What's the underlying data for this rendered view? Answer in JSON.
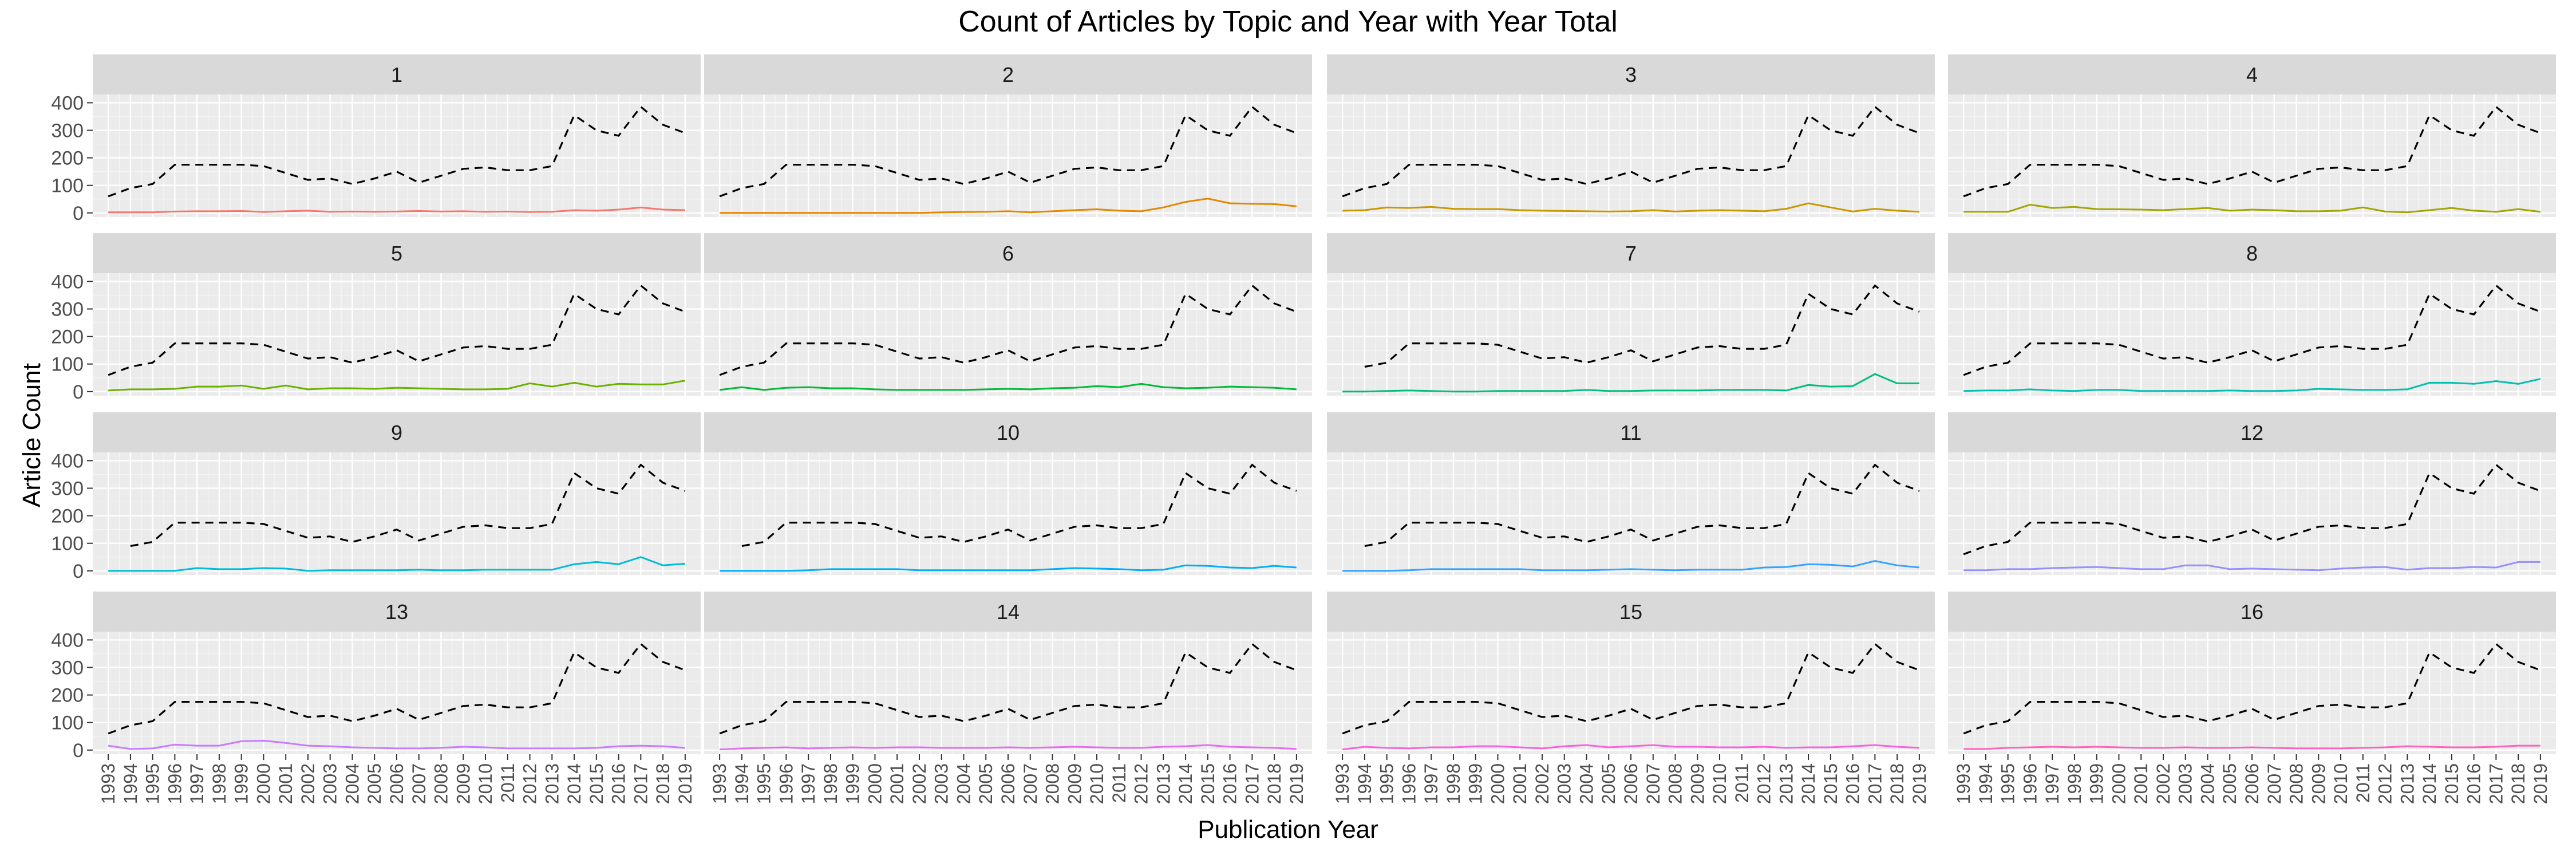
{
  "chart_data": {
    "type": "line",
    "title": "Count of Articles by Topic and Year with Year Total",
    "xlabel": "Publication Year",
    "ylabel": "Article Count",
    "x": [
      1993,
      1994,
      1995,
      1996,
      1997,
      1998,
      1999,
      2000,
      2001,
      2002,
      2003,
      2004,
      2005,
      2006,
      2007,
      2008,
      2009,
      2010,
      2011,
      2012,
      2013,
      2014,
      2015,
      2016,
      2017,
      2018,
      2019
    ],
    "x_tick_labels": [
      "1993",
      "1994",
      "1995",
      "1996",
      "1997",
      "1998",
      "1999",
      "2000",
      "2001",
      "2002",
      "2003",
      "2004",
      "2005",
      "2006",
      "2007",
      "2008",
      "2009",
      "2010",
      "2011",
      "2012",
      "2013",
      "2014",
      "2015",
      "2016",
      "2017",
      "2018",
      "2019"
    ],
    "y_ticks": [
      0,
      100,
      200,
      300,
      400
    ],
    "y_tick_labels": [
      "0",
      "100",
      "200",
      "300",
      "400"
    ],
    "ylim": [
      -15,
      430
    ],
    "xlim": [
      1992.3,
      2019.7
    ],
    "grid": true,
    "facet_layout": {
      "rows": 4,
      "cols": 4
    },
    "year_total": {
      "style": "dashed",
      "color": "#000000",
      "values": [
        60,
        90,
        105,
        175,
        175,
        175,
        175,
        170,
        145,
        120,
        125,
        105,
        125,
        150,
        110,
        135,
        160,
        165,
        155,
        155,
        170,
        355,
        300,
        280,
        385,
        320,
        290
      ]
    },
    "panels": [
      {
        "label": "1",
        "color": "#F8766D",
        "total_start": 0,
        "values": [
          2,
          2,
          2,
          5,
          6,
          6,
          7,
          3,
          6,
          8,
          4,
          5,
          4,
          5,
          7,
          5,
          6,
          4,
          5,
          3,
          4,
          10,
          8,
          12,
          20,
          12,
          10
        ]
      },
      {
        "label": "2",
        "color": "#E58700",
        "total_start": 0,
        "values": [
          0,
          0,
          0,
          0,
          0,
          0,
          0,
          0,
          0,
          0,
          2,
          3,
          4,
          6,
          2,
          6,
          10,
          13,
          8,
          6,
          20,
          40,
          52,
          35,
          33,
          32,
          24
        ]
      },
      {
        "label": "3",
        "color": "#C99800",
        "total_start": 0,
        "values": [
          8,
          10,
          20,
          18,
          22,
          15,
          14,
          14,
          10,
          8,
          7,
          6,
          5,
          6,
          10,
          5,
          8,
          10,
          8,
          6,
          15,
          35,
          20,
          5,
          15,
          8,
          4
        ]
      },
      {
        "label": "4",
        "color": "#A3A500",
        "total_start": 0,
        "values": [
          4,
          4,
          4,
          30,
          18,
          22,
          14,
          13,
          12,
          10,
          14,
          18,
          8,
          12,
          10,
          6,
          6,
          8,
          20,
          5,
          2,
          10,
          18,
          8,
          4,
          14,
          4
        ]
      },
      {
        "label": "5",
        "color": "#6BB100",
        "total_start": 0,
        "values": [
          4,
          8,
          8,
          10,
          18,
          18,
          22,
          10,
          22,
          8,
          12,
          12,
          10,
          14,
          12,
          10,
          8,
          8,
          10,
          30,
          18,
          32,
          18,
          28,
          26,
          26,
          40
        ]
      },
      {
        "label": "6",
        "color": "#00BA38",
        "total_start": 0,
        "values": [
          6,
          16,
          6,
          14,
          16,
          12,
          12,
          8,
          6,
          6,
          6,
          6,
          8,
          10,
          8,
          12,
          14,
          20,
          16,
          28,
          16,
          12,
          14,
          18,
          16,
          14,
          8
        ]
      },
      {
        "label": "7",
        "color": "#00BF7D",
        "total_start": 1,
        "values": [
          0,
          0,
          2,
          4,
          2,
          0,
          0,
          2,
          2,
          2,
          2,
          6,
          2,
          2,
          4,
          4,
          4,
          6,
          6,
          6,
          4,
          24,
          18,
          20,
          64,
          30,
          30
        ]
      },
      {
        "label": "8",
        "color": "#00C0AF",
        "total_start": 0,
        "values": [
          2,
          4,
          4,
          8,
          4,
          2,
          6,
          6,
          2,
          2,
          2,
          2,
          4,
          2,
          2,
          4,
          10,
          8,
          6,
          6,
          8,
          32,
          32,
          28,
          38,
          28,
          46
        ]
      },
      {
        "label": "9",
        "color": "#00BCD8",
        "total_start": 1,
        "values": [
          0,
          0,
          0,
          0,
          10,
          6,
          6,
          10,
          8,
          0,
          2,
          2,
          2,
          2,
          4,
          2,
          2,
          4,
          4,
          4,
          4,
          24,
          32,
          24,
          50,
          20,
          26
        ]
      },
      {
        "label": "10",
        "color": "#00B0F6",
        "total_start": 1,
        "values": [
          0,
          0,
          0,
          0,
          2,
          6,
          6,
          6,
          6,
          2,
          2,
          2,
          2,
          2,
          2,
          6,
          10,
          8,
          6,
          2,
          4,
          20,
          18,
          12,
          10,
          18,
          12
        ]
      },
      {
        "label": "11",
        "color": "#35A2FF",
        "total_start": 1,
        "values": [
          0,
          0,
          0,
          2,
          6,
          6,
          6,
          6,
          6,
          2,
          2,
          2,
          4,
          6,
          4,
          2,
          4,
          4,
          4,
          12,
          14,
          24,
          22,
          16,
          36,
          20,
          12
        ]
      },
      {
        "label": "12",
        "color": "#9590FF",
        "total_start": 0,
        "values": [
          2,
          2,
          6,
          6,
          10,
          12,
          14,
          10,
          6,
          6,
          20,
          20,
          6,
          8,
          6,
          4,
          2,
          8,
          12,
          14,
          4,
          10,
          10,
          14,
          12,
          32,
          32
        ]
      },
      {
        "label": "13",
        "color": "#D89000",
        "line_color": "#C77CFF",
        "total_start": 0,
        "values": [
          16,
          4,
          6,
          20,
          16,
          16,
          32,
          34,
          26,
          16,
          14,
          10,
          8,
          6,
          6,
          8,
          12,
          10,
          6,
          6,
          6,
          6,
          8,
          14,
          16,
          14,
          8
        ]
      },
      {
        "label": "14",
        "color": "#E76BF3",
        "total_start": 0,
        "values": [
          2,
          6,
          8,
          10,
          6,
          8,
          10,
          8,
          10,
          10,
          8,
          8,
          8,
          10,
          8,
          10,
          12,
          10,
          8,
          8,
          12,
          14,
          18,
          12,
          10,
          8,
          4
        ]
      },
      {
        "label": "15",
        "color": "#FA62DB",
        "total_start": 0,
        "values": [
          2,
          12,
          8,
          6,
          10,
          10,
          14,
          14,
          10,
          6,
          14,
          18,
          10,
          14,
          18,
          12,
          12,
          10,
          10,
          12,
          8,
          10,
          10,
          14,
          18,
          12,
          8
        ]
      },
      {
        "label": "16",
        "color": "#FF62BC",
        "total_start": 0,
        "values": [
          4,
          4,
          8,
          10,
          12,
          10,
          12,
          10,
          8,
          8,
          10,
          8,
          8,
          10,
          8,
          6,
          6,
          6,
          8,
          10,
          14,
          12,
          10,
          10,
          12,
          16,
          16
        ]
      }
    ]
  }
}
